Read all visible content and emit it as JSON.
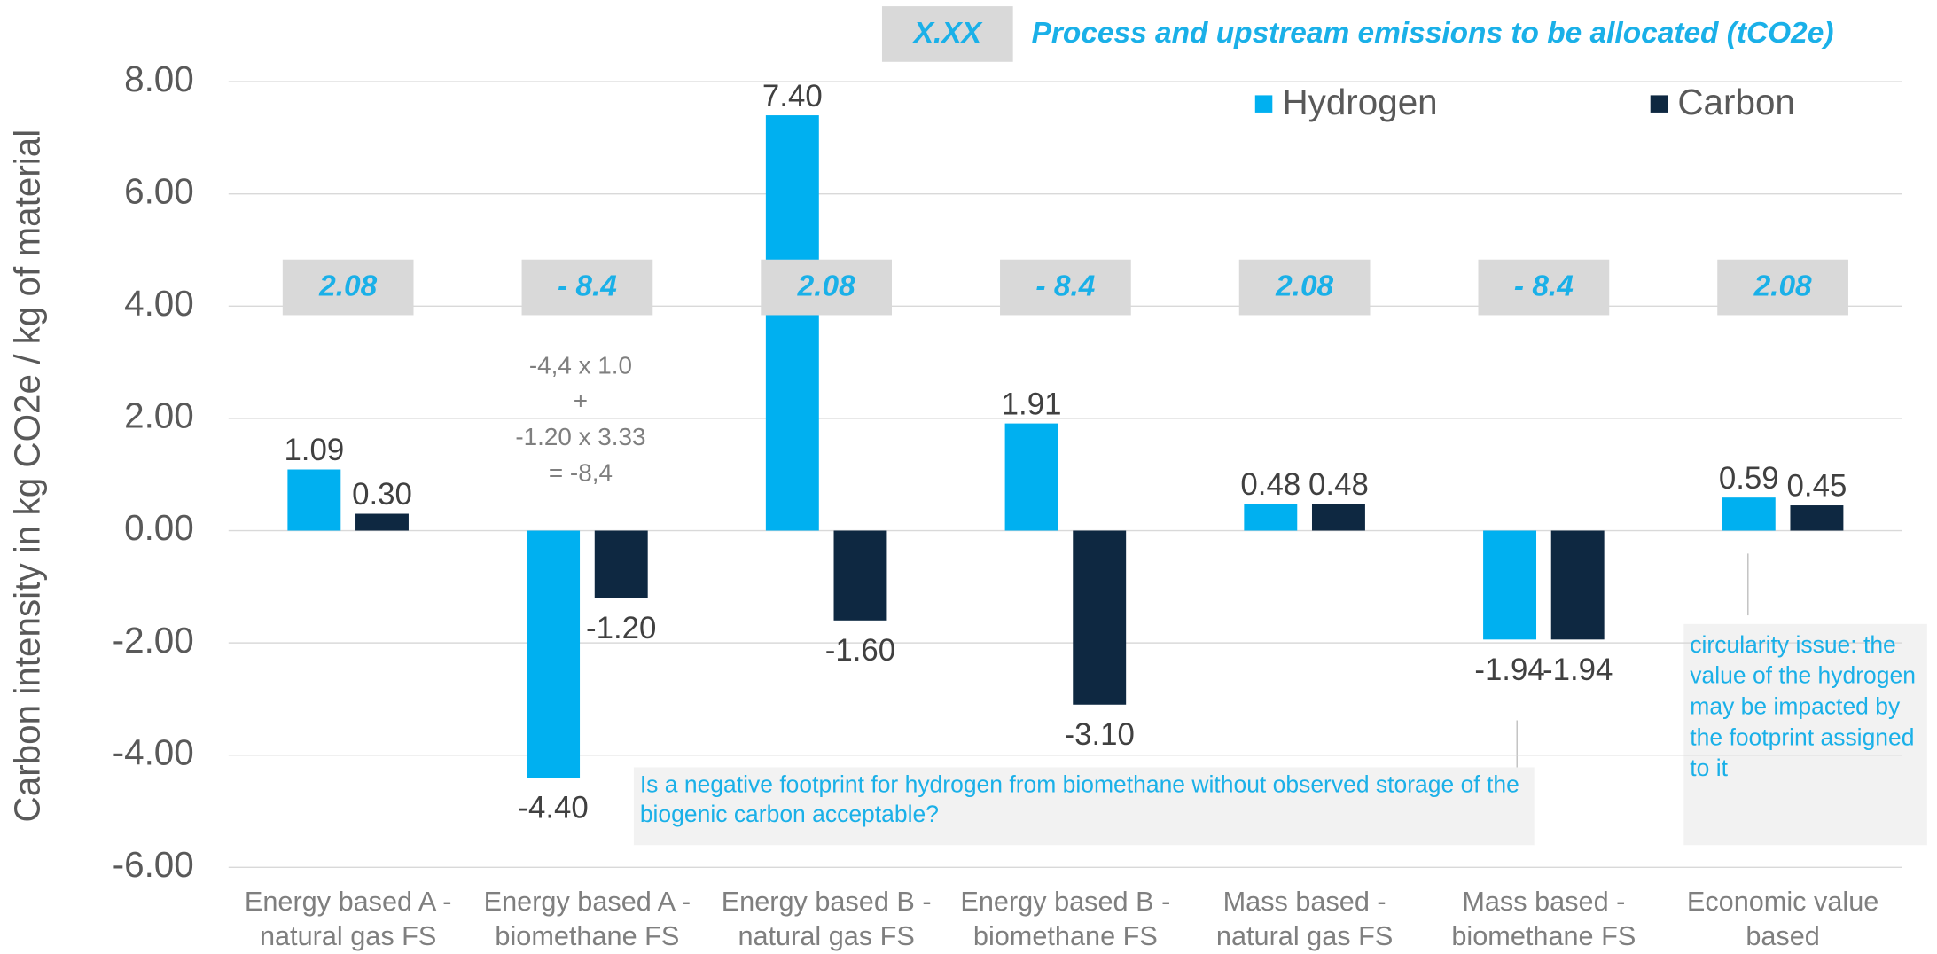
{
  "chart_data": {
    "type": "bar",
    "y_label": "Carbon intensity in kg CO2e / kg of material",
    "categories": [
      "Energy based A - natural gas FS",
      "Energy based A - biomethane FS",
      "Energy based B - natural gas FS",
      "Energy based B - biomethane FS",
      "Mass based - natural gas FS",
      "Mass based - biomethane FS",
      "Economic value based"
    ],
    "series": [
      {
        "name": "Hydrogen",
        "color": "#00b0f0",
        "values": [
          1.09,
          -4.4,
          7.4,
          1.91,
          0.48,
          -1.94,
          0.59
        ],
        "value_labels": [
          "1.09",
          "-4.40",
          "7.40",
          "1.91",
          "0.48",
          "-1.94",
          "0.59"
        ]
      },
      {
        "name": "Carbon",
        "color": "#0e2841",
        "values": [
          0.3,
          -1.2,
          -1.6,
          -3.1,
          0.48,
          -1.94,
          0.45
        ],
        "value_labels": [
          "0.30",
          "-1.20",
          "-1.60",
          "-3.10",
          "0.48",
          "-1.94",
          "0.45"
        ]
      }
    ],
    "ylim": [
      -6,
      8
    ],
    "yticks": [
      {
        "value": -6,
        "label": "-6.00"
      },
      {
        "value": -4,
        "label": "-4.00"
      },
      {
        "value": -2,
        "label": "-2.00"
      },
      {
        "value": 0,
        "label": "0.00"
      },
      {
        "value": 2,
        "label": "2.00"
      },
      {
        "value": 4,
        "label": "4.00"
      },
      {
        "value": 6,
        "label": "6.00"
      },
      {
        "value": 8,
        "label": "8.00"
      }
    ],
    "grid": true,
    "allocation_key": {
      "box": "X.XX",
      "text": "Process and upstream emissions to be allocated (tCO2e)"
    },
    "allocations": [
      "2.08",
      "- 8.4",
      "2.08",
      "- 8.4",
      "2.08",
      "- 8.4",
      "2.08"
    ],
    "formula": [
      "-4,4 x 1.0",
      "+",
      "-1.20 x 3.33",
      "= -8,4"
    ],
    "callouts": [
      "Is a negative footprint for hydrogen from biomethane without observed storage of the biogenic carbon acceptable?",
      "circularity issue: the value of the hydrogen may be impacted by the footprint assigned to it"
    ]
  }
}
